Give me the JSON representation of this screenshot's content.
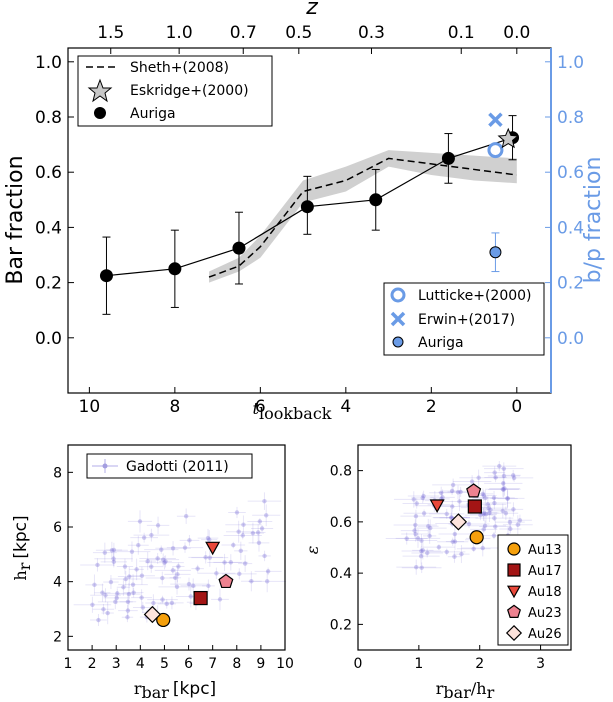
{
  "colors": {
    "blue": "#6a9be6",
    "band": "#d0d0d0",
    "scatter": "#7b6fd6"
  },
  "chart_data": [
    {
      "type": "line",
      "panel": "top",
      "xlabel_main": "t",
      "xlabel_sub": "lookback",
      "ylabel": "Bar fraction",
      "ylabel_right": "b/p fraction",
      "top_axis_label": "z",
      "xlim": [
        10.5,
        -0.8
      ],
      "ylim": [
        -0.2,
        1.05
      ],
      "xticks": [
        10,
        8,
        6,
        4,
        2,
        0
      ],
      "yticks": [
        0.0,
        0.2,
        0.4,
        0.6,
        0.8,
        1.0
      ],
      "top_ticks": [
        {
          "t": 9.5,
          "label": "1.5"
        },
        {
          "t": 7.9,
          "label": "1.0"
        },
        {
          "t": 6.4,
          "label": "0.7"
        },
        {
          "t": 5.1,
          "label": "0.5"
        },
        {
          "t": 3.4,
          "label": "0.3"
        },
        {
          "t": 1.3,
          "label": "0.1"
        },
        {
          "t": 0.0,
          "label": "0.0"
        }
      ],
      "series": [
        {
          "name": "Auriga",
          "style": "black-circles-line",
          "x": [
            9.6,
            8.0,
            6.5,
            4.9,
            3.3,
            1.6,
            0.1
          ],
          "y": [
            0.225,
            0.25,
            0.325,
            0.475,
            0.5,
            0.65,
            0.725
          ],
          "yerr_low": [
            0.14,
            0.14,
            0.13,
            0.1,
            0.11,
            0.09,
            0.08
          ],
          "yerr_high": [
            0.14,
            0.14,
            0.13,
            0.11,
            0.11,
            0.09,
            0.08
          ]
        },
        {
          "name": "Sheth+(2008)",
          "style": "dashed",
          "x": [
            7.2,
            6.5,
            6.0,
            5.0,
            4.0,
            3.0,
            2.0,
            1.0,
            0.0
          ],
          "y": [
            0.22,
            0.26,
            0.33,
            0.53,
            0.57,
            0.65,
            0.63,
            0.61,
            0.59
          ],
          "band_low": [
            0.2,
            0.24,
            0.29,
            0.49,
            0.53,
            0.62,
            0.59,
            0.57,
            0.56
          ],
          "band_high": [
            0.24,
            0.29,
            0.37,
            0.57,
            0.62,
            0.68,
            0.67,
            0.66,
            0.65
          ]
        },
        {
          "name": "Eskridge+(2000)",
          "style": "grey-star",
          "x": [
            0.2
          ],
          "y": [
            0.72
          ]
        },
        {
          "name": "Lutticke+(2000)",
          "style": "blue-open-circle",
          "x": [
            0.5
          ],
          "y": [
            0.68
          ]
        },
        {
          "name": "Erwin+(2017)",
          "style": "blue-cross",
          "x": [
            0.5
          ],
          "y": [
            0.79
          ]
        },
        {
          "name": "Auriga",
          "axis": "right",
          "style": "blue-filled-circle",
          "x": [
            0.5
          ],
          "y": [
            0.31
          ],
          "yerr": [
            0.07
          ]
        }
      ],
      "legend_top_left": [
        "Sheth+(2008)",
        "Eskridge+(2000)",
        "Auriga"
      ],
      "legend_bottom_right": [
        "Lutticke+(2000)",
        "Erwin+(2017)",
        "Auriga"
      ]
    },
    {
      "type": "scatter",
      "panel": "bottom-left",
      "xlabel_main": "r",
      "xlabel_sub": "bar",
      "xlabel_unit": "[kpc]",
      "ylabel_main": "h",
      "ylabel_sub": "r",
      "ylabel_unit": "[kpc]",
      "xlim": [
        1,
        10
      ],
      "ylim": [
        1.5,
        9.0
      ],
      "xticks": [
        1,
        2,
        3,
        4,
        5,
        6,
        7,
        8,
        9,
        10
      ],
      "yticks": [
        2,
        4,
        6,
        8
      ],
      "legend": "Gadotti (2011)",
      "galaxies": [
        {
          "name": "Au13",
          "x": 4.95,
          "y": 2.6
        },
        {
          "name": "Au17",
          "x": 6.5,
          "y": 3.4
        },
        {
          "name": "Au18",
          "x": 7.0,
          "y": 5.25
        },
        {
          "name": "Au23",
          "x": 7.55,
          "y": 4.0
        },
        {
          "name": "Au26",
          "x": 4.5,
          "y": 2.8
        }
      ],
      "cloud_xrange": [
        2.0,
        9.5
      ],
      "cloud_yrange": [
        2.2,
        7.2
      ]
    },
    {
      "type": "scatter",
      "panel": "bottom-right",
      "xlabel_main": "r",
      "xlabel_sub": "bar",
      "xlabel_sep": "/h",
      "xlabel_sub2": "r",
      "ylabel": "ε",
      "xlim": [
        0,
        3.5
      ],
      "ylim": [
        0.1,
        0.9
      ],
      "xticks": [
        0,
        1,
        2,
        3
      ],
      "yticks": [
        0.2,
        0.4,
        0.6,
        0.8
      ],
      "galaxies": [
        {
          "name": "Au13",
          "x": 1.95,
          "y": 0.54
        },
        {
          "name": "Au17",
          "x": 1.92,
          "y": 0.66
        },
        {
          "name": "Au18",
          "x": 1.3,
          "y": 0.665
        },
        {
          "name": "Au23",
          "x": 1.9,
          "y": 0.72
        },
        {
          "name": "Au26",
          "x": 1.65,
          "y": 0.6
        }
      ],
      "legend": [
        "Au13",
        "Au17",
        "Au18",
        "Au23",
        "Au26"
      ],
      "cloud_xrange": [
        0.8,
        2.7
      ],
      "cloud_yrange": [
        0.4,
        0.83
      ]
    }
  ],
  "galaxy_styles": {
    "Au13": {
      "shape": "circle",
      "color": "#f5a00c"
    },
    "Au17": {
      "shape": "square",
      "color": "#a31515"
    },
    "Au18": {
      "shape": "triangle",
      "color": "#e8483a"
    },
    "Au23": {
      "shape": "pentagon",
      "color": "#ee8290"
    },
    "Au26": {
      "shape": "diamond",
      "color": "#fde3dc"
    }
  }
}
